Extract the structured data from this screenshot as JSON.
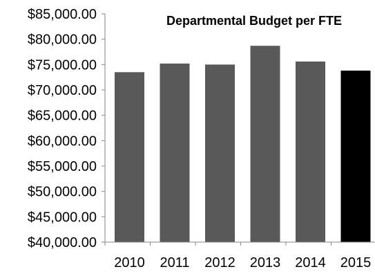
{
  "chart_data": {
    "type": "bar",
    "title": "Departmental Budget per FTE",
    "xlabel": "",
    "ylabel": "",
    "categories": [
      "2010",
      "2011",
      "2012",
      "2013",
      "2014",
      "2015"
    ],
    "values": [
      73500,
      75200,
      75000,
      78700,
      75600,
      73800
    ],
    "bar_colors": [
      "#595959",
      "#595959",
      "#595959",
      "#595959",
      "#595959",
      "#000000"
    ],
    "ylim": [
      40000,
      85000
    ],
    "y_ticks": [
      "$85,000.00",
      "$80,000.00",
      "$75,000.00",
      "$70,000.00",
      "$65,000.00",
      "$60,000.00",
      "$55,000.00",
      "$50,000.00",
      "$45,000.00",
      "$40,000.00"
    ],
    "grid": false,
    "legend": "none"
  }
}
